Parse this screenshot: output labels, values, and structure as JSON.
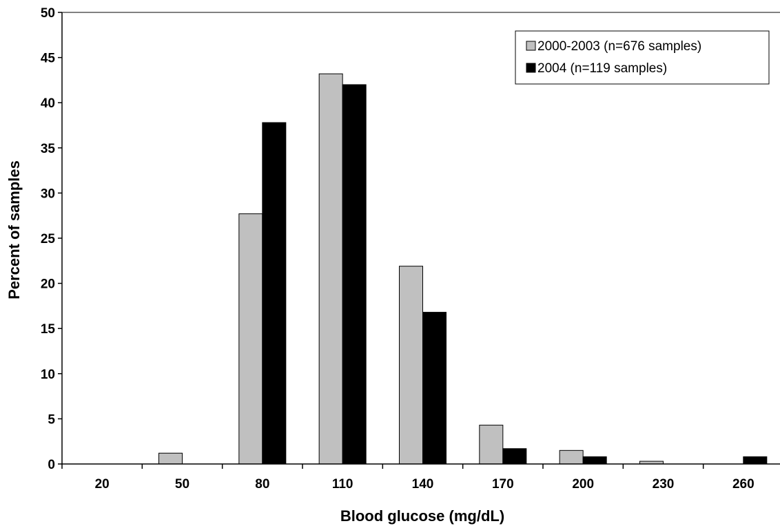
{
  "chart_data": {
    "type": "bar",
    "title": "",
    "xlabel": "Blood glucose (mg/dL)",
    "ylabel": "Percent of samples",
    "categories": [
      "20",
      "50",
      "80",
      "110",
      "140",
      "170",
      "200",
      "230",
      "260"
    ],
    "ylim": [
      0,
      50
    ],
    "yticks": [
      "0",
      "5",
      "10",
      "15",
      "20",
      "25",
      "30",
      "35",
      "40",
      "45",
      "50"
    ],
    "grid": false,
    "legend_position": "top-right",
    "series": [
      {
        "name": "2000-2003 (n=676 samples)",
        "color": "#c0c0c0",
        "values": [
          0,
          1.2,
          27.7,
          43.2,
          21.9,
          4.3,
          1.5,
          0.3,
          0
        ]
      },
      {
        "name": "2004 (n=119 samples)",
        "color": "#000000",
        "values": [
          0,
          0,
          37.8,
          42.0,
          16.8,
          1.7,
          0.8,
          0,
          0.8
        ]
      }
    ]
  }
}
